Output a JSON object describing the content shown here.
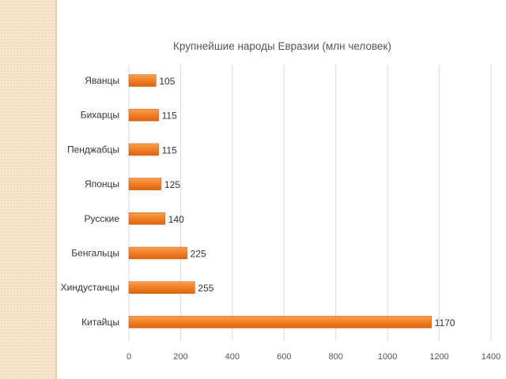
{
  "chart_data": {
    "type": "bar",
    "orientation": "horizontal",
    "title": "Крупнейшие народы Евразии (млн человек)",
    "categories": [
      "Яванцы",
      "Бихарцы",
      "Пенджабцы",
      "Японцы",
      "Русские",
      "Бенгальцы",
      "Хиндустанцы",
      "Китайцы"
    ],
    "values": [
      105,
      115,
      115,
      125,
      140,
      225,
      255,
      1170
    ],
    "xlabel": "",
    "ylabel": "",
    "xlim": [
      0,
      1400
    ],
    "xticks": [
      "0",
      "200",
      "400",
      "600",
      "800",
      "1000",
      "1200",
      "1400"
    ],
    "grid": true,
    "legend": "none",
    "bar_color": "#f07f2a"
  }
}
